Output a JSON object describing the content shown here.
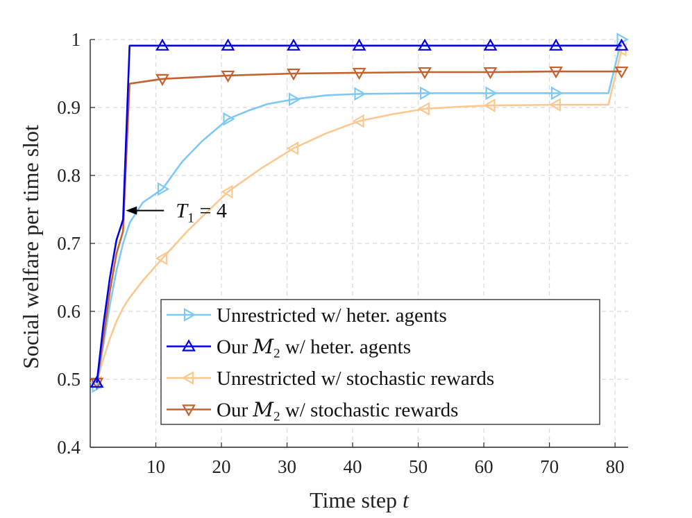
{
  "chart_data": {
    "type": "line",
    "title": "",
    "xlabel": "Time step ",
    "xlabel_var": "t",
    "ylabel": "Social welfare per time slot",
    "xlim": [
      0,
      82
    ],
    "ylim": [
      0.4,
      1.0
    ],
    "xticks": [
      10,
      20,
      30,
      40,
      50,
      60,
      70,
      80
    ],
    "yticks": [
      0.4,
      0.5,
      0.6,
      0.7,
      0.8,
      0.9,
      1.0
    ],
    "ytick_labels": [
      "0.4",
      "0.5",
      "0.6",
      "0.7",
      "0.8",
      "0.9",
      "1"
    ],
    "grid": true,
    "legend_position": "bottom-right",
    "series": [
      {
        "id": "unrestricted-heter",
        "name_plain": "Unrestricted w/ heter. agents",
        "color": "#7ec8f5",
        "marker": "triangle-right",
        "points": [
          [
            1,
            0.49
          ],
          [
            2,
            0.55
          ],
          [
            3,
            0.61
          ],
          [
            4,
            0.66
          ],
          [
            5,
            0.7
          ],
          [
            6,
            0.73
          ],
          [
            8,
            0.76
          ],
          [
            11,
            0.78
          ],
          [
            14,
            0.82
          ],
          [
            17,
            0.85
          ],
          [
            21,
            0.883
          ],
          [
            24,
            0.895
          ],
          [
            27,
            0.905
          ],
          [
            31,
            0.912
          ],
          [
            36,
            0.918
          ],
          [
            41,
            0.92
          ],
          [
            51,
            0.921
          ],
          [
            61,
            0.921
          ],
          [
            71,
            0.921
          ],
          [
            79,
            0.921
          ],
          [
            81,
            1.0
          ]
        ],
        "marker_x": [
          1,
          11,
          21,
          31,
          41,
          51,
          61,
          71,
          81
        ]
      },
      {
        "id": "ours-heter",
        "name_math": "M",
        "name_sub": "2",
        "name_pre": "Our ",
        "name_post": " w/ heter. agents",
        "color": "#0000e6",
        "marker": "triangle-up",
        "points": [
          [
            1,
            0.495
          ],
          [
            2,
            0.58
          ],
          [
            3,
            0.65
          ],
          [
            4,
            0.705
          ],
          [
            5,
            0.735
          ],
          [
            6,
            0.991
          ],
          [
            11,
            0.991
          ],
          [
            21,
            0.991
          ],
          [
            31,
            0.991
          ],
          [
            41,
            0.991
          ],
          [
            51,
            0.991
          ],
          [
            61,
            0.991
          ],
          [
            71,
            0.991
          ],
          [
            81,
            0.991
          ]
        ],
        "marker_x": [
          1,
          11,
          21,
          31,
          41,
          51,
          61,
          71,
          81
        ]
      },
      {
        "id": "unrestricted-stoch",
        "name_plain": "Unrestricted w/ stochastic rewards",
        "color": "#fcc88e",
        "marker": "triangle-left",
        "points": [
          [
            1,
            0.495
          ],
          [
            2,
            0.53
          ],
          [
            3,
            0.56
          ],
          [
            4,
            0.585
          ],
          [
            5,
            0.605
          ],
          [
            6,
            0.62
          ],
          [
            8,
            0.645
          ],
          [
            11,
            0.678
          ],
          [
            15,
            0.72
          ],
          [
            21,
            0.776
          ],
          [
            26,
            0.81
          ],
          [
            31,
            0.84
          ],
          [
            36,
            0.862
          ],
          [
            41,
            0.88
          ],
          [
            46,
            0.89
          ],
          [
            51,
            0.898
          ],
          [
            56,
            0.901
          ],
          [
            61,
            0.903
          ],
          [
            71,
            0.904
          ],
          [
            79,
            0.904
          ],
          [
            81,
            0.985
          ]
        ],
        "marker_x": [
          1,
          11,
          21,
          31,
          41,
          51,
          61,
          71,
          81
        ]
      },
      {
        "id": "ours-stoch",
        "name_math": "M",
        "name_sub": "2",
        "name_pre": "Our ",
        "name_post": " w/ stochastic rewards",
        "color": "#c4612c",
        "marker": "triangle-down",
        "points": [
          [
            1,
            0.495
          ],
          [
            2,
            0.56
          ],
          [
            3,
            0.63
          ],
          [
            4,
            0.685
          ],
          [
            5,
            0.718
          ],
          [
            6,
            0.935
          ],
          [
            11,
            0.942
          ],
          [
            21,
            0.947
          ],
          [
            31,
            0.95
          ],
          [
            41,
            0.951
          ],
          [
            51,
            0.952
          ],
          [
            61,
            0.952
          ],
          [
            71,
            0.953
          ],
          [
            80,
            0.953
          ],
          [
            81,
            0.953
          ]
        ],
        "marker_x": [
          1,
          11,
          21,
          31,
          41,
          51,
          61,
          71,
          81
        ]
      }
    ],
    "annotation": {
      "var": "T",
      "sub": "1",
      "rest": " = 4",
      "target": [
        5,
        0.733
      ]
    }
  }
}
